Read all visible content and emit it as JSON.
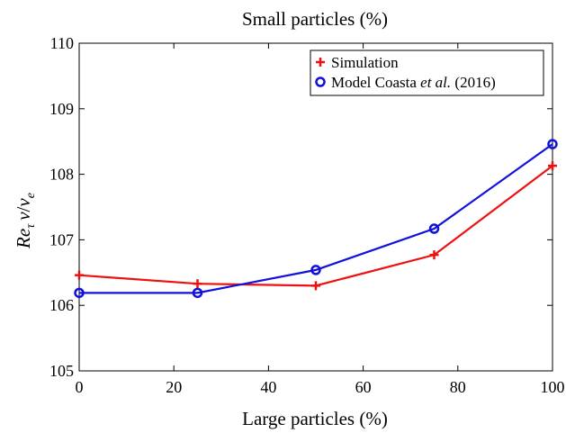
{
  "chart_data": {
    "type": "line",
    "title": "Small particles (%)",
    "xlabel": "Large particles (%)",
    "ylabel": {
      "base": "Re",
      "sub": "τ",
      "nu": "ν",
      "slash": "/",
      "nu2": "ν",
      "sub2": "e"
    },
    "xlim": [
      0,
      100
    ],
    "ylim": [
      105,
      110
    ],
    "xticks": [
      0,
      20,
      40,
      60,
      80,
      100
    ],
    "yticks": [
      105,
      106,
      107,
      108,
      109,
      110
    ],
    "grid": false,
    "legend_position": "top-right",
    "series": [
      {
        "name": "Simulation",
        "color": "#ee1111",
        "marker": "plus",
        "x": [
          0,
          25,
          50,
          75,
          100
        ],
        "y": [
          106.46,
          106.33,
          106.3,
          106.77,
          108.13
        ]
      },
      {
        "name_parts": [
          "Model Coasta ",
          "et al.",
          " (2016)"
        ],
        "color": "#1111dd",
        "marker": "circle",
        "x": [
          0,
          25,
          50,
          75,
          100
        ],
        "y": [
          106.19,
          106.19,
          106.54,
          107.17,
          108.46
        ]
      }
    ]
  }
}
